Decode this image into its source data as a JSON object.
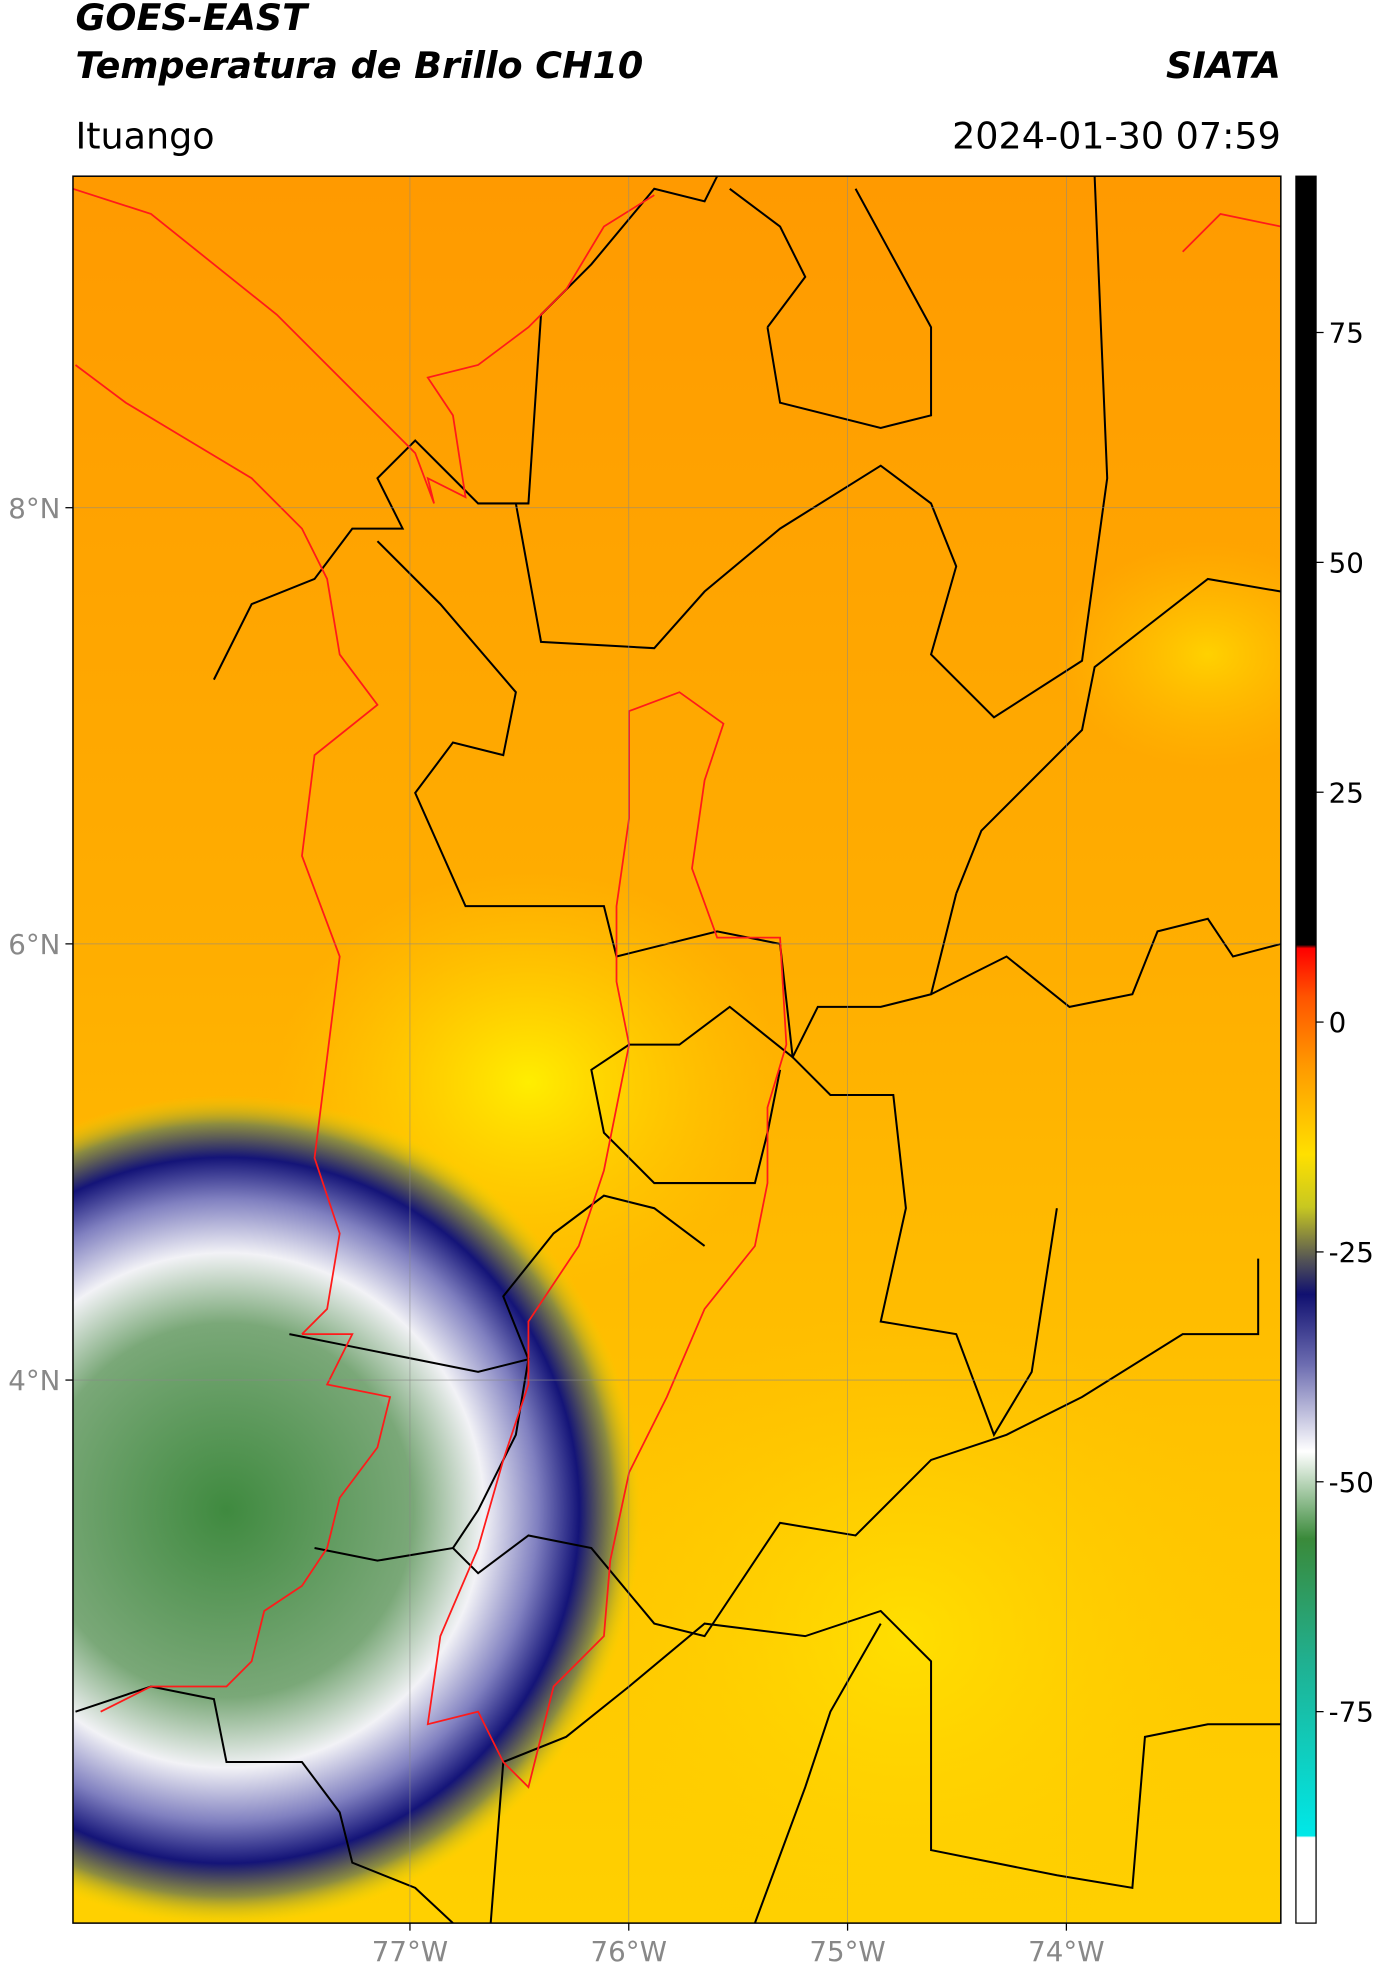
{
  "header": {
    "title_line1": "GOES-EAST",
    "title_line2": "Temperatura de Brillo CH10",
    "brand": "SIATA",
    "location": "Ituango",
    "timestamp": "2024-01-30 07:59"
  },
  "map": {
    "lonlim": [
      -78.54,
      -73.02
    ],
    "latlim": [
      1.51,
      9.52
    ],
    "lonticks": [
      {
        "value": -77,
        "label": "77°W"
      },
      {
        "value": -76,
        "label": "76°W"
      },
      {
        "value": -75,
        "label": "75°W"
      },
      {
        "value": -74,
        "label": "74°W"
      }
    ],
    "latticks": [
      {
        "value": 8,
        "label": "8°N"
      },
      {
        "value": 6,
        "label": "6°N"
      },
      {
        "value": 4,
        "label": "4°N"
      }
    ]
  },
  "colorbar": {
    "lim": [
      -98,
      92
    ],
    "ticks": [
      -75,
      -50,
      -25,
      0,
      25,
      50,
      75
    ]
  }
}
